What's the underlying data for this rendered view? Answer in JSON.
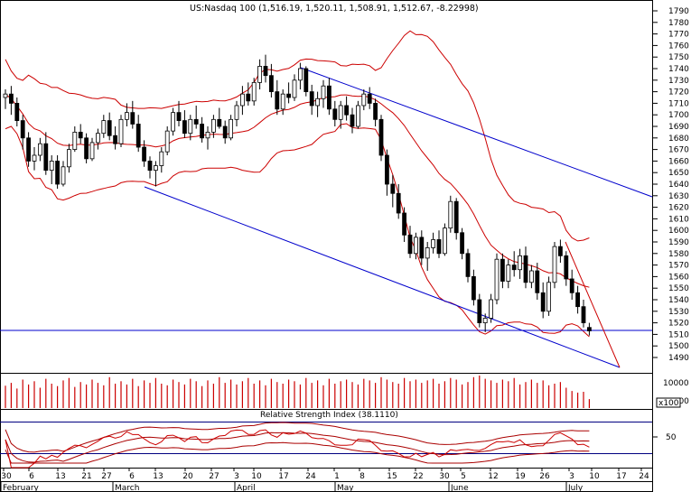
{
  "chart_data": {
    "type": "candlestick",
    "title": "US:Nasdaq 100 (1,516.19, 1,520.11, 1,508.91, 1,512.67, -8.22998)",
    "price_axis": {
      "ylim": [
        1480,
        1800
      ],
      "tick_labels": [
        "1490",
        "1500",
        "1510",
        "1520",
        "1530",
        "1540",
        "1550",
        "1560",
        "1570",
        "1580",
        "1590",
        "1600",
        "1610",
        "1620",
        "1630",
        "1640",
        "1650",
        "1660",
        "1670",
        "1680",
        "1690",
        "1700",
        "1710",
        "1720",
        "1730",
        "1740",
        "1750",
        "1760",
        "1770",
        "1780",
        "1790"
      ]
    },
    "volume_axis": {
      "tick_labels": [
        "10000",
        "5000"
      ],
      "multiplier_label": "x100"
    },
    "rsi": {
      "label": "Relative Strength Index (38.1110)",
      "tick_labels": [
        "50"
      ],
      "ylim": [
        0,
        100
      ]
    },
    "date_axis": {
      "day_labels": [
        "30",
        "6",
        "13",
        "21",
        "27",
        "6",
        "13",
        "20",
        "27",
        "3",
        "10",
        "17",
        "24",
        "1",
        "8",
        "15",
        "22",
        "30",
        "5",
        "12",
        "19",
        "26",
        "3",
        "10",
        "17",
        "24"
      ],
      "month_labels": [
        "February",
        "March",
        "April",
        "May",
        "June",
        "July"
      ]
    },
    "candles": [
      [
        1715,
        1722,
        1705,
        1718
      ],
      [
        1718,
        1725,
        1700,
        1710
      ],
      [
        1710,
        1715,
        1690,
        1695
      ],
      [
        1695,
        1700,
        1670,
        1680
      ],
      [
        1680,
        1685,
        1655,
        1660
      ],
      [
        1660,
        1672,
        1652,
        1665
      ],
      [
        1665,
        1680,
        1660,
        1675
      ],
      [
        1675,
        1685,
        1648,
        1652
      ],
      [
        1652,
        1665,
        1640,
        1660
      ],
      [
        1660,
        1665,
        1636,
        1640
      ],
      [
        1640,
        1660,
        1638,
        1655
      ],
      [
        1655,
        1675,
        1650,
        1670
      ],
      [
        1670,
        1690,
        1668,
        1685
      ],
      [
        1685,
        1692,
        1675,
        1680
      ],
      [
        1680,
        1684,
        1658,
        1662
      ],
      [
        1662,
        1680,
        1660,
        1676
      ],
      [
        1676,
        1688,
        1670,
        1684
      ],
      [
        1684,
        1700,
        1680,
        1695
      ],
      [
        1695,
        1702,
        1678,
        1682
      ],
      [
        1682,
        1690,
        1670,
        1675
      ],
      [
        1675,
        1700,
        1672,
        1696
      ],
      [
        1696,
        1710,
        1690,
        1702
      ],
      [
        1702,
        1712,
        1688,
        1692
      ],
      [
        1692,
        1700,
        1668,
        1672
      ],
      [
        1672,
        1678,
        1655,
        1660
      ],
      [
        1660,
        1664,
        1645,
        1652
      ],
      [
        1652,
        1660,
        1638,
        1656
      ],
      [
        1656,
        1672,
        1650,
        1668
      ],
      [
        1668,
        1690,
        1665,
        1686
      ],
      [
        1686,
        1706,
        1682,
        1702
      ],
      [
        1702,
        1712,
        1690,
        1695
      ],
      [
        1695,
        1704,
        1680,
        1684
      ],
      [
        1684,
        1700,
        1678,
        1696
      ],
      [
        1696,
        1708,
        1688,
        1692
      ],
      [
        1692,
        1698,
        1676,
        1680
      ],
      [
        1680,
        1690,
        1670,
        1685
      ],
      [
        1685,
        1700,
        1680,
        1696
      ],
      [
        1696,
        1706,
        1688,
        1690
      ],
      [
        1690,
        1695,
        1675,
        1680
      ],
      [
        1680,
        1700,
        1678,
        1696
      ],
      [
        1696,
        1712,
        1690,
        1708
      ],
      [
        1708,
        1725,
        1700,
        1718
      ],
      [
        1718,
        1728,
        1708,
        1712
      ],
      [
        1712,
        1732,
        1708,
        1728
      ],
      [
        1728,
        1748,
        1722,
        1742
      ],
      [
        1742,
        1752,
        1728,
        1734
      ],
      [
        1734,
        1744,
        1715,
        1720
      ],
      [
        1720,
        1730,
        1700,
        1705
      ],
      [
        1705,
        1722,
        1700,
        1718
      ],
      [
        1718,
        1728,
        1710,
        1715
      ],
      [
        1715,
        1735,
        1712,
        1730
      ],
      [
        1730,
        1745,
        1722,
        1740
      ],
      [
        1740,
        1742,
        1716,
        1720
      ],
      [
        1720,
        1726,
        1700,
        1708
      ],
      [
        1708,
        1720,
        1698,
        1714
      ],
      [
        1714,
        1730,
        1706,
        1725
      ],
      [
        1725,
        1732,
        1700,
        1705
      ],
      [
        1705,
        1712,
        1690,
        1696
      ],
      [
        1696,
        1712,
        1688,
        1708
      ],
      [
        1708,
        1716,
        1695,
        1700
      ],
      [
        1700,
        1706,
        1684,
        1690
      ],
      [
        1690,
        1712,
        1688,
        1708
      ],
      [
        1708,
        1722,
        1704,
        1718
      ],
      [
        1718,
        1724,
        1705,
        1710
      ],
      [
        1710,
        1714,
        1690,
        1696
      ],
      [
        1696,
        1700,
        1660,
        1665
      ],
      [
        1665,
        1670,
        1630,
        1640
      ],
      [
        1640,
        1648,
        1620,
        1632
      ],
      [
        1632,
        1640,
        1610,
        1615
      ],
      [
        1615,
        1620,
        1590,
        1596
      ],
      [
        1596,
        1604,
        1576,
        1580
      ],
      [
        1580,
        1598,
        1575,
        1594
      ],
      [
        1594,
        1600,
        1570,
        1576
      ],
      [
        1576,
        1590,
        1565,
        1585
      ],
      [
        1585,
        1598,
        1580,
        1592
      ],
      [
        1592,
        1600,
        1576,
        1580
      ],
      [
        1580,
        1606,
        1578,
        1602
      ],
      [
        1602,
        1630,
        1598,
        1625
      ],
      [
        1625,
        1628,
        1592,
        1598
      ],
      [
        1598,
        1602,
        1575,
        1580
      ],
      [
        1580,
        1584,
        1555,
        1560
      ],
      [
        1560,
        1566,
        1535,
        1540
      ],
      [
        1540,
        1545,
        1516,
        1520
      ],
      [
        1520,
        1528,
        1512,
        1524
      ],
      [
        1524,
        1545,
        1520,
        1540
      ],
      [
        1540,
        1580,
        1536,
        1575
      ],
      [
        1575,
        1580,
        1550,
        1556
      ],
      [
        1556,
        1575,
        1550,
        1570
      ],
      [
        1570,
        1582,
        1560,
        1566
      ],
      [
        1566,
        1584,
        1558,
        1578
      ],
      [
        1578,
        1586,
        1550,
        1555
      ],
      [
        1555,
        1570,
        1550,
        1565
      ],
      [
        1565,
        1572,
        1540,
        1546
      ],
      [
        1546,
        1555,
        1524,
        1530
      ],
      [
        1530,
        1560,
        1526,
        1555
      ],
      [
        1555,
        1590,
        1550,
        1586
      ],
      [
        1586,
        1592,
        1572,
        1578
      ],
      [
        1578,
        1582,
        1552,
        1558
      ],
      [
        1558,
        1566,
        1540,
        1546
      ],
      [
        1546,
        1552,
        1528,
        1534
      ],
      [
        1534,
        1540,
        1516,
        1520
      ],
      [
        1516,
        1520,
        1509,
        1513
      ]
    ],
    "volume": [
      55,
      62,
      48,
      70,
      58,
      66,
      50,
      72,
      60,
      54,
      68,
      74,
      52,
      64,
      58,
      70,
      62,
      56,
      76,
      60,
      66,
      58,
      72,
      54,
      68,
      62,
      74,
      60,
      56,
      70,
      64,
      58,
      72,
      66,
      54,
      68,
      60,
      76,
      62,
      70,
      58,
      66,
      74,
      60,
      68,
      56,
      72,
      64,
      60,
      70,
      66,
      58,
      74,
      62,
      68,
      56,
      72,
      60,
      66,
      70,
      64,
      58,
      72,
      68,
      62,
      76,
      70,
      64,
      60,
      74,
      66,
      70,
      62,
      68,
      72,
      60,
      66,
      74,
      70,
      58,
      64,
      76,
      80,
      72,
      68,
      62,
      70,
      66,
      74,
      58,
      64,
      70,
      62,
      68,
      56,
      60,
      64,
      50,
      42,
      38,
      40,
      22
    ]
  }
}
